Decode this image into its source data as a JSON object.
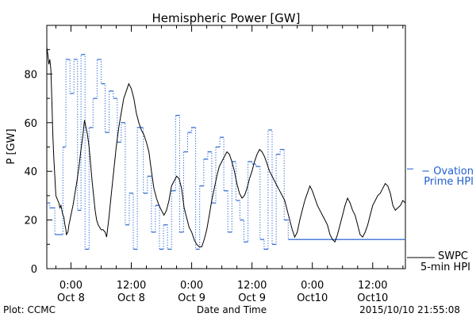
{
  "chart_data": {
    "type": "line",
    "title": "Hemispheric Power [GW]",
    "xlabel": "Date and Time",
    "ylabel": "P [GW]",
    "ylim": [
      0,
      100
    ],
    "yticks": [
      0,
      20,
      40,
      60,
      80
    ],
    "xlim_hours": [
      -4.8,
      66.5
    ],
    "xticks": [
      {
        "hour": 0,
        "line1": "0:00",
        "line2": "Oct 8"
      },
      {
        "hour": 12,
        "line1": "12:00",
        "line2": "Oct 8"
      },
      {
        "hour": 24,
        "line1": "0:00",
        "line2": "Oct 9"
      },
      {
        "hour": 36,
        "line1": "12:00",
        "line2": "Oct 9"
      },
      {
        "hour": 48,
        "line1": "0:00",
        "line2": "Oct10"
      },
      {
        "hour": 60,
        "line1": "12:00",
        "line2": "Oct10"
      }
    ],
    "grid": false,
    "legend_position": "right",
    "series": [
      {
        "name": "SWPC 5-min HPI",
        "color": "#000000",
        "style": "solid",
        "points": [
          [
            -4.8,
            91
          ],
          [
            -4.6,
            88
          ],
          [
            -4.4,
            84
          ],
          [
            -4.2,
            86
          ],
          [
            -4.0,
            82
          ],
          [
            -3.8,
            70
          ],
          [
            -3.6,
            55
          ],
          [
            -3.4,
            45
          ],
          [
            -3.2,
            38
          ],
          [
            -3.0,
            30
          ],
          [
            -2.8,
            29
          ],
          [
            -2.6,
            28
          ],
          [
            -2.4,
            27
          ],
          [
            -2.2,
            25
          ],
          [
            -2.0,
            26
          ],
          [
            -1.8,
            24
          ],
          [
            -1.6,
            22
          ],
          [
            -1.4,
            21
          ],
          [
            -1.2,
            18
          ],
          [
            -1.0,
            16
          ],
          [
            -0.9,
            14
          ],
          [
            -0.6,
            15
          ],
          [
            -0.4,
            18
          ],
          [
            -0.2,
            20
          ],
          [
            0.0,
            22
          ],
          [
            0.4,
            26
          ],
          [
            0.8,
            31
          ],
          [
            1.2,
            36
          ],
          [
            1.6,
            42
          ],
          [
            2.0,
            49
          ],
          [
            2.4,
            55
          ],
          [
            2.7,
            61
          ],
          [
            3.0,
            58
          ],
          [
            3.3,
            55
          ],
          [
            3.6,
            50
          ],
          [
            3.9,
            43
          ],
          [
            4.2,
            36
          ],
          [
            4.5,
            30
          ],
          [
            4.8,
            24
          ],
          [
            5.1,
            20
          ],
          [
            5.4,
            18
          ],
          [
            5.7,
            17
          ],
          [
            6.0,
            16
          ],
          [
            6.4,
            16
          ],
          [
            6.8,
            15
          ],
          [
            7.1,
            13
          ],
          [
            7.5,
            20
          ],
          [
            8.0,
            30
          ],
          [
            8.5,
            40
          ],
          [
            9.0,
            50
          ],
          [
            9.5,
            58
          ],
          [
            10.0,
            64
          ],
          [
            10.5,
            70
          ],
          [
            11.0,
            73
          ],
          [
            11.5,
            76
          ],
          [
            12.0,
            74
          ],
          [
            12.5,
            70
          ],
          [
            13.0,
            64
          ],
          [
            13.5,
            60
          ],
          [
            14.0,
            57
          ],
          [
            14.5,
            55
          ],
          [
            15.0,
            52
          ],
          [
            15.5,
            48
          ],
          [
            16.0,
            40
          ],
          [
            16.5,
            33
          ],
          [
            17.0,
            29
          ],
          [
            17.5,
            26
          ],
          [
            18.0,
            24
          ],
          [
            18.5,
            22
          ],
          [
            19.0,
            24
          ],
          [
            19.5,
            28
          ],
          [
            20.0,
            34
          ],
          [
            20.5,
            36
          ],
          [
            21.0,
            38
          ],
          [
            21.5,
            37
          ],
          [
            22.0,
            33
          ],
          [
            22.5,
            25
          ],
          [
            23.0,
            21
          ],
          [
            23.5,
            17
          ],
          [
            24.0,
            15
          ],
          [
            24.5,
            12
          ],
          [
            25.0,
            10
          ],
          [
            25.5,
            9
          ],
          [
            26.0,
            9
          ],
          [
            26.5,
            12
          ],
          [
            27.0,
            16
          ],
          [
            27.5,
            22
          ],
          [
            28.0,
            28
          ],
          [
            28.5,
            33
          ],
          [
            29.0,
            38
          ],
          [
            29.5,
            42
          ],
          [
            30.0,
            44
          ],
          [
            30.5,
            46
          ],
          [
            31.0,
            48
          ],
          [
            31.5,
            47
          ],
          [
            32.0,
            44
          ],
          [
            32.5,
            40
          ],
          [
            33.0,
            35
          ],
          [
            33.5,
            31
          ],
          [
            34.0,
            29
          ],
          [
            34.5,
            30
          ],
          [
            35.0,
            33
          ],
          [
            35.5,
            37
          ],
          [
            36.0,
            40
          ],
          [
            36.5,
            44
          ],
          [
            37.0,
            47
          ],
          [
            37.5,
            49
          ],
          [
            38.0,
            48
          ],
          [
            38.5,
            46
          ],
          [
            39.0,
            43
          ],
          [
            39.5,
            40
          ],
          [
            40.0,
            38
          ],
          [
            40.5,
            36
          ],
          [
            41.0,
            34
          ],
          [
            41.5,
            32
          ],
          [
            42.0,
            30
          ],
          [
            42.5,
            28
          ],
          [
            43.0,
            24
          ],
          [
            43.5,
            20
          ],
          [
            44.0,
            16
          ],
          [
            44.5,
            13
          ],
          [
            45.0,
            15
          ],
          [
            45.5,
            20
          ],
          [
            46.0,
            24
          ],
          [
            46.5,
            28
          ],
          [
            47.0,
            31
          ],
          [
            47.5,
            34
          ],
          [
            48.0,
            32
          ],
          [
            48.5,
            29
          ],
          [
            49.0,
            26
          ],
          [
            49.5,
            24
          ],
          [
            50.0,
            22
          ],
          [
            50.5,
            20
          ],
          [
            51.0,
            18
          ],
          [
            51.5,
            14
          ],
          [
            52.0,
            12
          ],
          [
            52.5,
            11
          ],
          [
            53.0,
            14
          ],
          [
            53.5,
            18
          ],
          [
            54.0,
            22
          ],
          [
            54.5,
            26
          ],
          [
            55.0,
            29
          ],
          [
            55.5,
            27
          ],
          [
            56.0,
            24
          ],
          [
            56.5,
            22
          ],
          [
            57.0,
            18
          ],
          [
            57.5,
            14
          ],
          [
            58.0,
            13
          ],
          [
            58.5,
            15
          ],
          [
            59.0,
            18
          ],
          [
            59.5,
            22
          ],
          [
            60.0,
            26
          ],
          [
            60.5,
            28
          ],
          [
            61.0,
            30
          ],
          [
            61.5,
            31
          ],
          [
            62.0,
            33
          ],
          [
            62.5,
            35
          ],
          [
            63.0,
            34
          ],
          [
            63.5,
            31
          ],
          [
            64.0,
            26
          ],
          [
            64.5,
            24
          ],
          [
            65.0,
            25
          ],
          [
            65.5,
            26
          ],
          [
            66.0,
            28
          ],
          [
            66.5,
            27
          ]
        ]
      },
      {
        "name": "Ovation Prime HPI",
        "color": "#1f5fd0",
        "style": "dotted-step",
        "steps": [
          [
            -4.8,
            27
          ],
          [
            -4.2,
            25
          ],
          [
            -3.2,
            14
          ],
          [
            -1.6,
            50
          ],
          [
            -1.0,
            86
          ],
          [
            -0.2,
            72
          ],
          [
            0.6,
            86
          ],
          [
            1.3,
            24
          ],
          [
            2.0,
            88
          ],
          [
            2.8,
            8
          ],
          [
            3.6,
            58
          ],
          [
            4.4,
            70
          ],
          [
            5.2,
            86
          ],
          [
            6.0,
            76
          ],
          [
            6.8,
            56
          ],
          [
            7.6,
            73
          ],
          [
            8.4,
            70
          ],
          [
            9.2,
            52
          ],
          [
            10.0,
            60
          ],
          [
            10.8,
            18
          ],
          [
            11.6,
            31
          ],
          [
            12.4,
            8
          ],
          [
            13.2,
            58
          ],
          [
            14.4,
            31
          ],
          [
            15.2,
            38
          ],
          [
            16.0,
            15
          ],
          [
            16.8,
            26
          ],
          [
            17.6,
            8
          ],
          [
            18.4,
            18
          ],
          [
            19.2,
            8
          ],
          [
            20.0,
            32
          ],
          [
            20.8,
            63
          ],
          [
            21.6,
            15
          ],
          [
            22.4,
            48
          ],
          [
            23.2,
            56
          ],
          [
            24.0,
            58
          ],
          [
            24.8,
            8
          ],
          [
            25.6,
            34
          ],
          [
            26.4,
            45
          ],
          [
            27.2,
            48
          ],
          [
            28.0,
            27
          ],
          [
            28.8,
            50
          ],
          [
            29.6,
            54
          ],
          [
            30.4,
            32
          ],
          [
            31.2,
            15
          ],
          [
            32.0,
            44
          ],
          [
            32.8,
            28
          ],
          [
            33.6,
            20
          ],
          [
            34.4,
            11
          ],
          [
            35.2,
            44
          ],
          [
            36.0,
            43
          ],
          [
            36.8,
            42
          ],
          [
            37.6,
            12
          ],
          [
            38.4,
            8
          ],
          [
            39.2,
            57
          ],
          [
            40.0,
            10
          ],
          [
            40.8,
            47
          ],
          [
            41.6,
            49
          ],
          [
            42.4,
            20
          ],
          [
            43.2,
            12
          ]
        ]
      }
    ],
    "legend": [
      {
        "label1": "SWPC",
        "label2": "5-min HPI",
        "color": "#000000"
      },
      {
        "label1": "− Ovation",
        "label2": "Prime HPI",
        "color": "#1f5fd0"
      }
    ]
  },
  "footer": {
    "left": "Plot: CCMC",
    "timestamp": "2015/10/10 21:55:08"
  }
}
